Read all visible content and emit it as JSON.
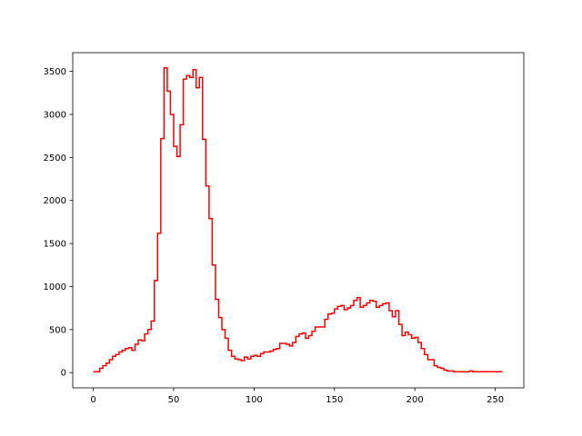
{
  "chart_data": {
    "type": "step",
    "color": "#ff0000",
    "x": [
      0,
      2,
      4,
      6,
      8,
      10,
      12,
      14,
      16,
      18,
      20,
      22,
      24,
      26,
      28,
      30,
      32,
      34,
      36,
      38,
      40,
      42,
      44,
      46,
      48,
      50,
      52,
      54,
      56,
      58,
      60,
      62,
      64,
      66,
      68,
      70,
      72,
      74,
      76,
      78,
      80,
      82,
      84,
      86,
      88,
      90,
      92,
      94,
      96,
      98,
      100,
      102,
      104,
      106,
      108,
      110,
      112,
      114,
      116,
      118,
      120,
      122,
      124,
      126,
      128,
      130,
      132,
      134,
      136,
      138,
      140,
      142,
      144,
      146,
      148,
      150,
      152,
      154,
      156,
      158,
      160,
      162,
      164,
      166,
      168,
      170,
      172,
      174,
      176,
      178,
      180,
      182,
      184,
      186,
      188,
      190,
      192,
      194,
      196,
      198,
      200,
      202,
      204,
      206,
      208,
      210,
      212,
      214,
      216,
      218,
      220,
      222,
      224,
      226,
      228,
      230,
      232,
      234,
      236,
      238,
      240,
      242,
      244,
      246,
      248,
      250,
      252,
      254
    ],
    "values": [
      10,
      10,
      50,
      80,
      110,
      150,
      190,
      210,
      240,
      260,
      280,
      290,
      260,
      330,
      380,
      370,
      450,
      500,
      600,
      1070,
      1620,
      2720,
      3540,
      3270,
      3000,
      2630,
      2510,
      2880,
      3410,
      3450,
      3430,
      3520,
      3310,
      3430,
      2710,
      2170,
      1790,
      1250,
      850,
      640,
      500,
      400,
      260,
      190,
      160,
      150,
      140,
      180,
      160,
      190,
      200,
      190,
      220,
      240,
      240,
      250,
      270,
      280,
      340,
      340,
      330,
      310,
      350,
      420,
      450,
      460,
      400,
      430,
      480,
      530,
      530,
      530,
      620,
      680,
      690,
      740,
      770,
      780,
      730,
      750,
      780,
      840,
      870,
      760,
      780,
      810,
      840,
      830,
      760,
      780,
      800,
      810,
      720,
      650,
      720,
      560,
      430,
      470,
      440,
      400,
      410,
      350,
      280,
      210,
      150,
      150,
      80,
      60,
      50,
      30,
      20,
      20,
      10,
      10,
      10,
      10,
      10,
      20,
      10,
      10,
      10,
      10,
      10,
      10,
      10,
      10,
      10,
      20
    ],
    "xlim": [
      -12.75,
      267.75
    ],
    "ylim": [
      -177,
      3717
    ],
    "xticks": [
      0,
      50,
      100,
      150,
      200,
      250
    ],
    "yticks": [
      0,
      500,
      1000,
      1500,
      2000,
      2500,
      3000,
      3500
    ]
  }
}
